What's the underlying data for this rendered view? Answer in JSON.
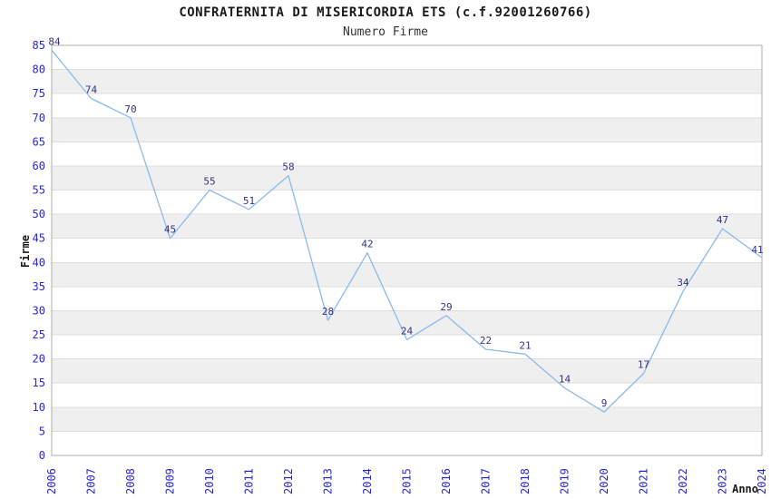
{
  "chart_data": {
    "type": "line",
    "title": "CONFRATERNITA DI MISERICORDIA ETS (c.f.92001260766)",
    "subtitle": "Numero Firme",
    "xlabel": "Anno",
    "ylabel": "Firme",
    "categories": [
      "2006",
      "2007",
      "2008",
      "2009",
      "2010",
      "2011",
      "2012",
      "2013",
      "2014",
      "2015",
      "2016",
      "2017",
      "2018",
      "2019",
      "2020",
      "2021",
      "2022",
      "2023",
      "2024"
    ],
    "values": [
      84,
      74,
      70,
      45,
      55,
      51,
      58,
      28,
      42,
      24,
      29,
      22,
      21,
      14,
      9,
      17,
      34,
      47,
      41
    ],
    "ylim": [
      0,
      85
    ],
    "ytick_step": 5,
    "yticks": [
      0,
      5,
      10,
      15,
      20,
      25,
      30,
      35,
      40,
      45,
      50,
      55,
      60,
      65,
      70,
      75,
      80,
      85
    ],
    "grid": true,
    "legend": "none",
    "banded_background": true,
    "data_labels": true,
    "x_tick_rotation": -90,
    "colors": {
      "line": "#8CBAE8",
      "tick_label": "#2828CF",
      "data_label": "#333380",
      "band": "#EFEFEF",
      "gridline": "#DEDEDE",
      "plot_border": "#ADADAD",
      "title": "#1A1A1A",
      "subtitle": "#333333"
    }
  }
}
